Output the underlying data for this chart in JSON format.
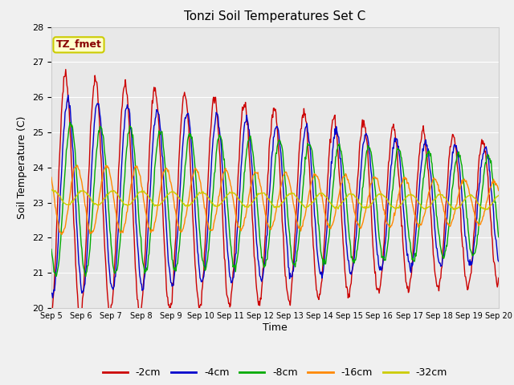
{
  "title": "Tonzi Soil Temperatures Set C",
  "xlabel": "Time",
  "ylabel": "Soil Temperature (C)",
  "ylim": [
    20.0,
    28.0
  ],
  "yticks": [
    20.0,
    21.0,
    22.0,
    23.0,
    24.0,
    25.0,
    26.0,
    27.0,
    28.0
  ],
  "xtick_labels": [
    "Sep 5",
    "Sep 6",
    "Sep 7",
    "Sep 8",
    "Sep 9",
    "Sep 10",
    "Sep 11",
    "Sep 12",
    "Sep 13",
    "Sep 14",
    "Sep 15",
    "Sep 16",
    "Sep 17",
    "Sep 18",
    "Sep 19",
    "Sep 20"
  ],
  "legend_label": "TZ_fmet",
  "legend_bg": "#ffffcc",
  "legend_border": "#cccc00",
  "series_labels": [
    "-2cm",
    "-4cm",
    "-8cm",
    "-16cm",
    "-32cm"
  ],
  "series_colors": [
    "#cc0000",
    "#0000cc",
    "#00aa00",
    "#ff8800",
    "#cccc00"
  ],
  "figure_bg": "#f0f0f0",
  "plot_bg": "#e8e8e8",
  "grid_color": "#ffffff",
  "n_days": 15,
  "points_per_day": 48
}
